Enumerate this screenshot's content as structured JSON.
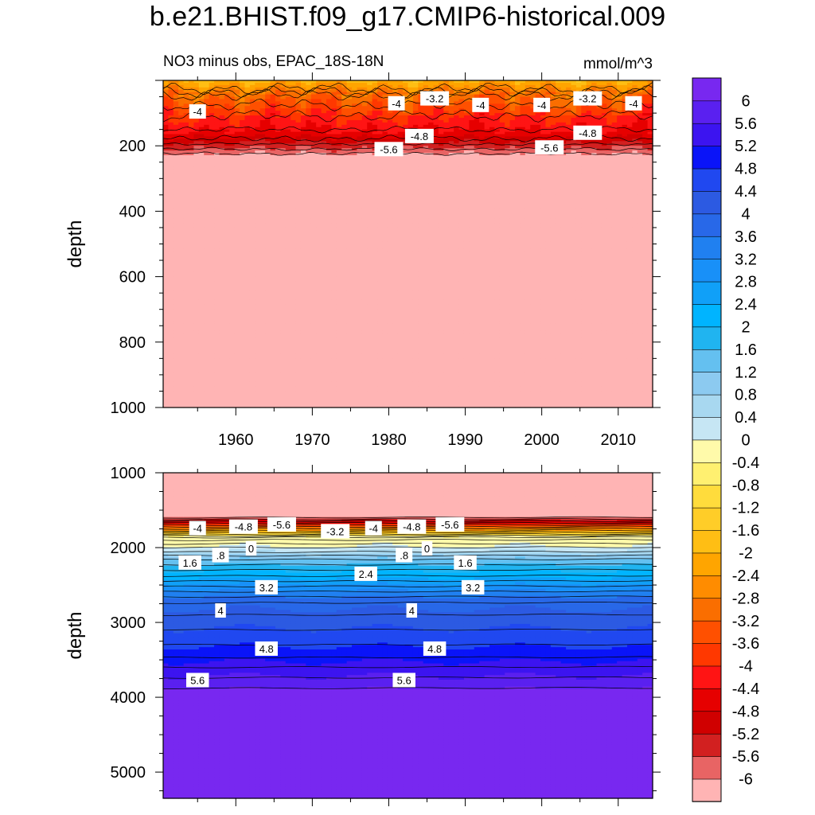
{
  "title": "b.e21.BHIST.f09_g17.CMIP6-historical.009",
  "chart_data": {
    "type": "heatmap",
    "variable_label": "NO3 minus obs, EPAC_18S-18N",
    "units": "mmol/m^3",
    "ylabel": "depth",
    "x_ticks": [
      1960,
      1970,
      1980,
      1990,
      2000,
      2010
    ],
    "xlim": [
      1950.5,
      2014.5
    ],
    "colorbar": {
      "levels": [
        -6,
        -5.6,
        -5.2,
        -4.8,
        -4.4,
        -4,
        -3.6,
        -3.2,
        -2.8,
        -2.4,
        -2,
        -1.6,
        -1.2,
        -0.8,
        -0.4,
        0,
        0.4,
        0.8,
        1.2,
        1.6,
        2,
        2.4,
        2.8,
        3.2,
        3.6,
        4,
        4.4,
        4.8,
        5.2,
        5.6,
        6
      ],
      "labels": [
        "6",
        "5.6",
        "5.2",
        "4.8",
        "4.4",
        "4",
        "3.6",
        "3.2",
        "2.8",
        "2.4",
        "2",
        "1.6",
        "1.2",
        "0.8",
        "0.4",
        "0",
        "-0.4",
        "-0.8",
        "-1.2",
        "-1.6",
        "-2",
        "-2.4",
        "-2.8",
        "-3.2",
        "-3.6",
        "-4",
        "-4.4",
        "-4.8",
        "-5.2",
        "-5.6",
        "-6"
      ],
      "colors": [
        "#ffb4b4",
        "#e86464",
        "#d22020",
        "#d00000",
        "#e60000",
        "#ff1414",
        "#ff3800",
        "#ff5000",
        "#fa6e00",
        "#ff8c00",
        "#ffa500",
        "#ffbe14",
        "#ffcd28",
        "#ffdc3c",
        "#fff070",
        "#fffaaa",
        "#c6e6f4",
        "#a8d8f0",
        "#8ccaf0",
        "#64c0f0",
        "#20b4f0",
        "#00b4ff",
        "#10a0f8",
        "#1890f8",
        "#2080f0",
        "#2868e8",
        "#2c5ae2",
        "#2048f0",
        "#0a14f8",
        "#3c14f0",
        "#5a20f0",
        "#7828f0"
      ]
    },
    "panels": [
      {
        "name": "upper",
        "ylim": [
          0,
          1000
        ],
        "y_ticks": [
          200,
          400,
          600,
          800,
          1000
        ],
        "contour_labels": [
          {
            "text": "-4",
            "year": 1955,
            "depth": 95
          },
          {
            "text": "-4",
            "year": 1981,
            "depth": 70
          },
          {
            "text": "-3.2",
            "year": 1986,
            "depth": 55
          },
          {
            "text": "-4",
            "year": 1992,
            "depth": 75
          },
          {
            "text": "-4",
            "year": 2000,
            "depth": 75
          },
          {
            "text": "-3.2",
            "year": 2006,
            "depth": 55
          },
          {
            "text": "-4",
            "year": 2012,
            "depth": 70
          },
          {
            "text": "-4.8",
            "year": 1984,
            "depth": 170
          },
          {
            "text": "-4.8",
            "year": 2006,
            "depth": 160
          },
          {
            "text": "-5.6",
            "year": 1980,
            "depth": 210
          },
          {
            "text": "-5.6",
            "year": 2001,
            "depth": 205
          }
        ]
      },
      {
        "name": "lower",
        "ylim": [
          1000,
          5350
        ],
        "y_ticks": [
          1000,
          2000,
          3000,
          4000,
          5000
        ],
        "contour_labels": [
          {
            "text": "-4",
            "year": 1955,
            "depth": 1740
          },
          {
            "text": "-4.8",
            "year": 1961,
            "depth": 1720
          },
          {
            "text": "-5.6",
            "year": 1966,
            "depth": 1690
          },
          {
            "text": "-3.2",
            "year": 1973,
            "depth": 1780
          },
          {
            "text": "-4",
            "year": 1978,
            "depth": 1740
          },
          {
            "text": "-4.8",
            "year": 1983,
            "depth": 1720
          },
          {
            "text": "-5.6",
            "year": 1988,
            "depth": 1690
          },
          {
            "text": "0",
            "year": 1962,
            "depth": 2010
          },
          {
            "text": ".8",
            "year": 1958,
            "depth": 2100
          },
          {
            "text": "1.6",
            "year": 1954,
            "depth": 2200
          },
          {
            "text": "0",
            "year": 1985,
            "depth": 2010
          },
          {
            "text": ".8",
            "year": 1982,
            "depth": 2100
          },
          {
            "text": "1.6",
            "year": 1990,
            "depth": 2200
          },
          {
            "text": "2.4",
            "year": 1977,
            "depth": 2350
          },
          {
            "text": "3.2",
            "year": 1964,
            "depth": 2530
          },
          {
            "text": "3.2",
            "year": 1991,
            "depth": 2530
          },
          {
            "text": "4",
            "year": 1958,
            "depth": 2840
          },
          {
            "text": "4",
            "year": 1983,
            "depth": 2840
          },
          {
            "text": "4.8",
            "year": 1964,
            "depth": 3350
          },
          {
            "text": "4.8",
            "year": 1986,
            "depth": 3350
          },
          {
            "text": "5.6",
            "year": 1955,
            "depth": 3770
          },
          {
            "text": "5.6",
            "year": 1982,
            "depth": 3770
          }
        ]
      }
    ]
  }
}
